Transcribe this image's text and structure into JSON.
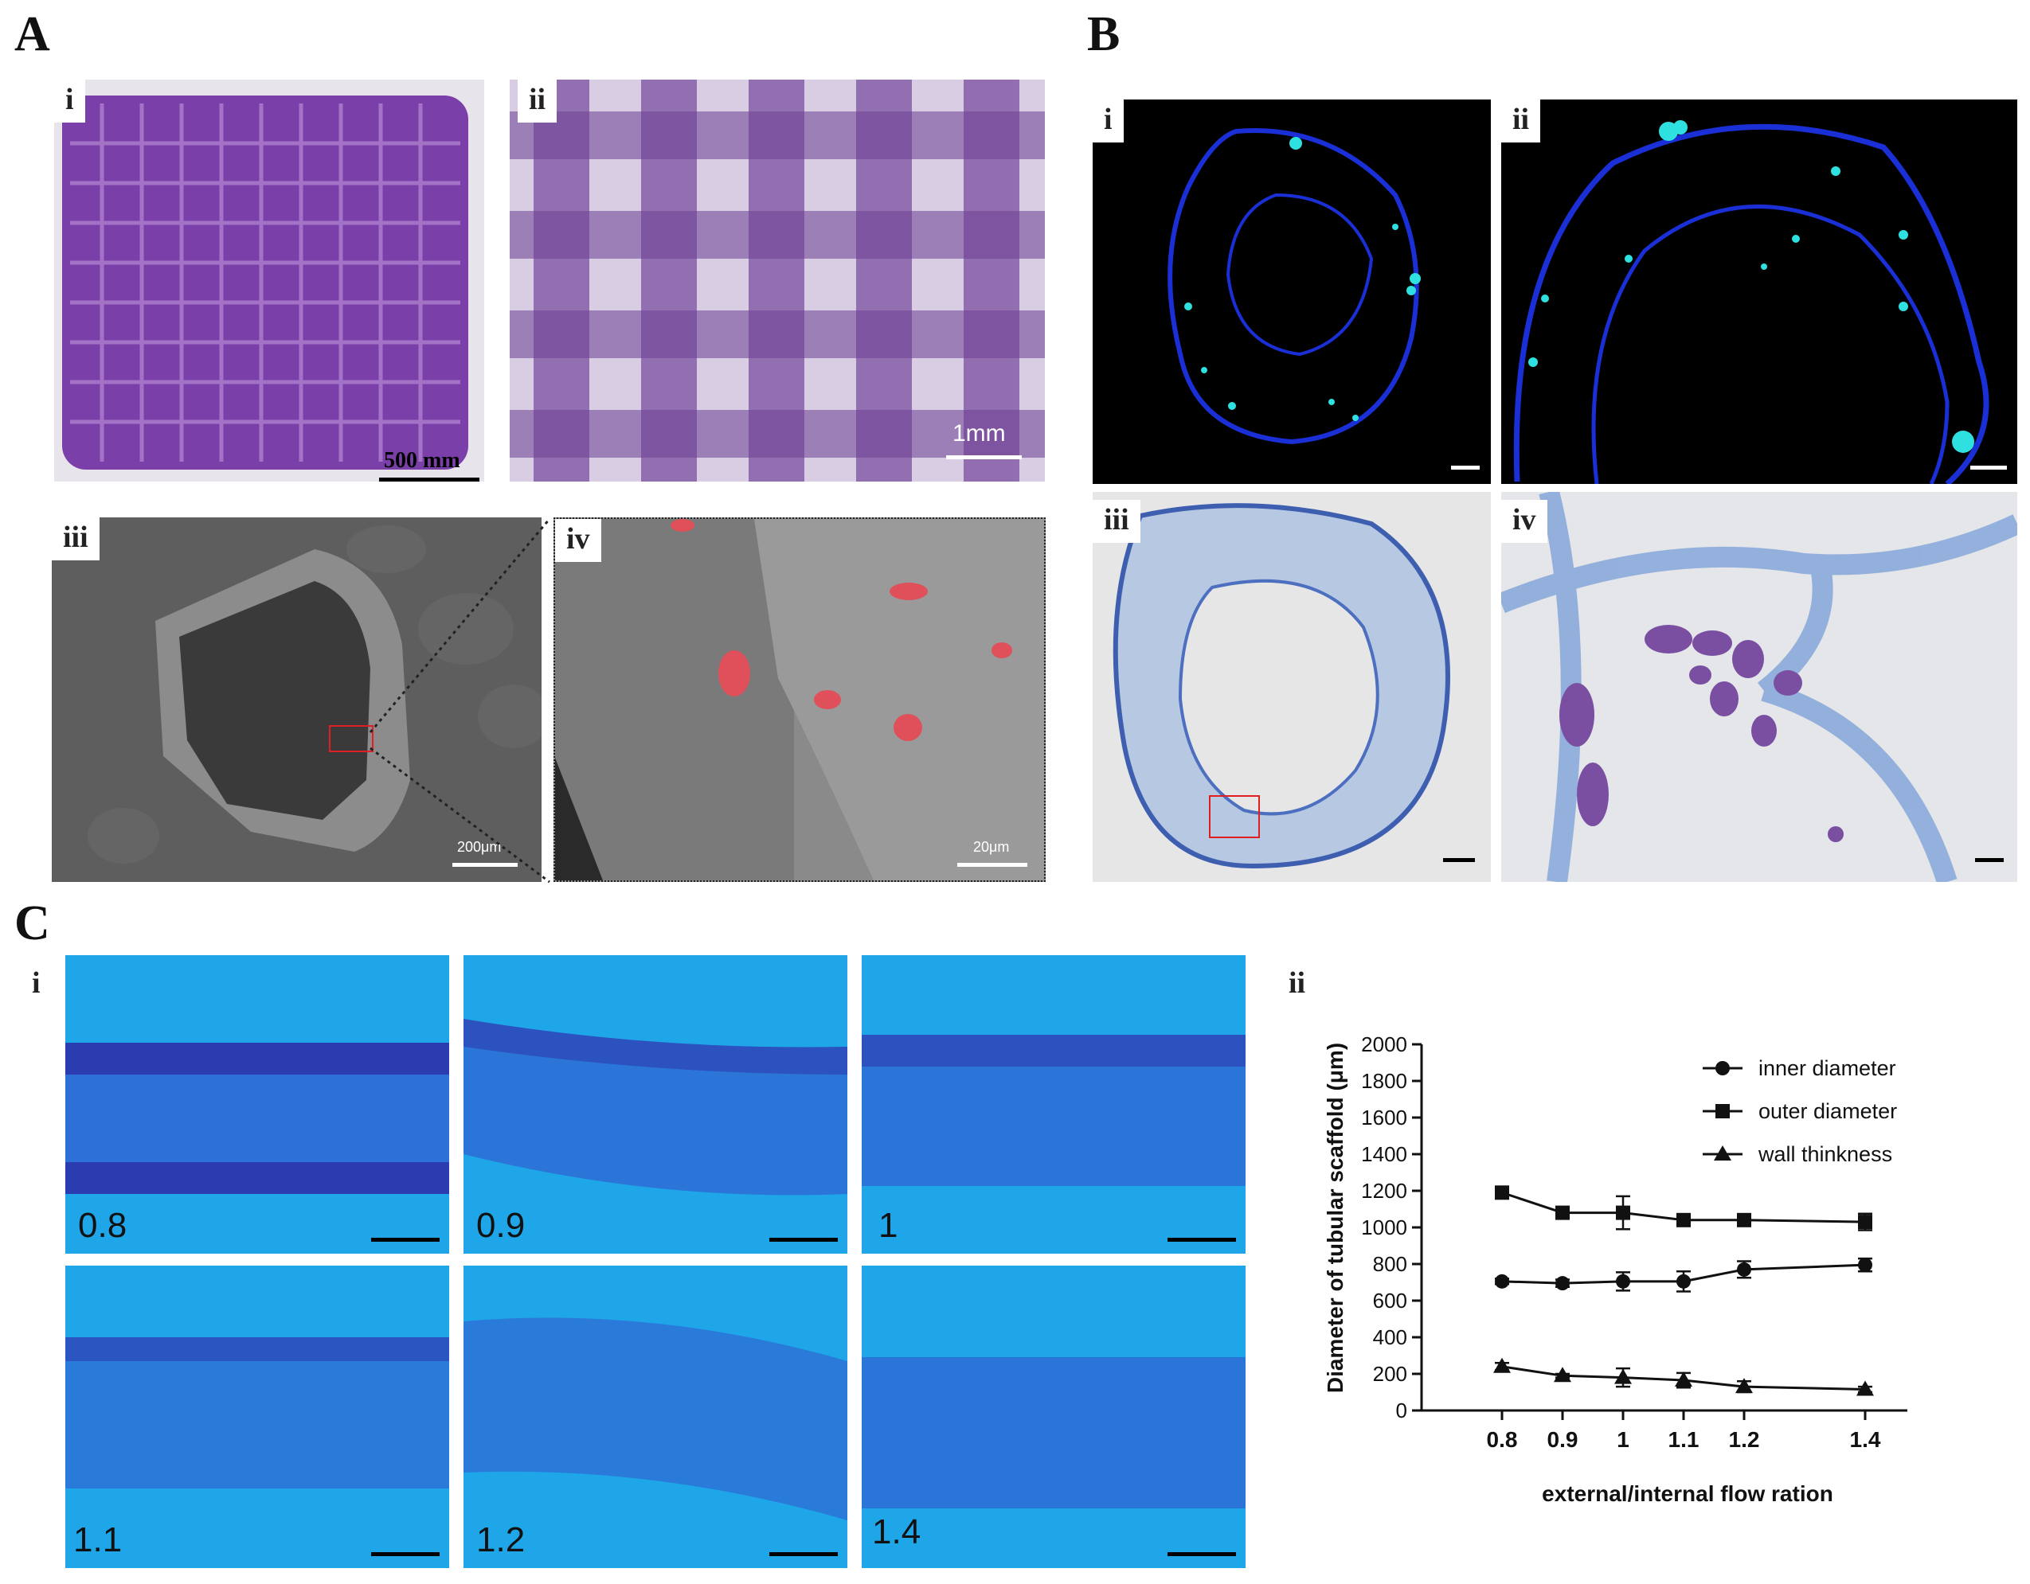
{
  "panels": {
    "A": {
      "letter": "A",
      "i": {
        "label": "i",
        "scale": "500 mm"
      },
      "ii": {
        "label": "ii",
        "scale": "1mm"
      },
      "iii": {
        "label": "iii",
        "scale": "200μm"
      },
      "iv": {
        "label": "iv",
        "scale": "20μm"
      }
    },
    "B": {
      "letter": "B",
      "i": {
        "label": "i"
      },
      "ii": {
        "label": "ii"
      },
      "iii": {
        "label": "iii"
      },
      "iv": {
        "label": "iv"
      }
    },
    "C": {
      "letter": "C",
      "i": {
        "label": "i",
        "ratios": [
          "0.8",
          "0.9",
          "1",
          "1.1",
          "1.2",
          "1.4"
        ]
      },
      "ii": {
        "label": "ii"
      }
    }
  },
  "colors": {
    "purple_gel": "#7a3fa8",
    "sem_gray": "#5e5e5e",
    "fluor_blue": "#1a2fd6",
    "fluor_cyan": "#2fe0e0",
    "stain_blue": "#5c86c9",
    "tube_bg": "#1ea6e8",
    "tube_wall": "#3a44c8",
    "red_cells": "#e0505a",
    "chart_ink": "#111111"
  },
  "chart_data": {
    "type": "line",
    "x": [
      0.8,
      0.9,
      1,
      1.1,
      1.2,
      1.4
    ],
    "x_tick_labels": [
      "0.8",
      "0.9",
      "1",
      "1.1",
      "1.2",
      "1.4"
    ],
    "xlabel": "external/internal flow ration",
    "ylabel": "Diameter of tubular scaffold (μm)",
    "ylim": [
      0,
      2000
    ],
    "y_ticks": [
      0,
      200,
      400,
      600,
      800,
      1000,
      1200,
      1400,
      1600,
      1800,
      2000
    ],
    "legend_position": "top-right",
    "grid": false,
    "series": [
      {
        "name": "inner diameter",
        "marker": "circle",
        "values": [
          705,
          695,
          705,
          705,
          770,
          795
        ],
        "errors": [
          15,
          20,
          50,
          55,
          45,
          35
        ]
      },
      {
        "name": "outer diameter",
        "marker": "square",
        "values": [
          1190,
          1080,
          1080,
          1040,
          1040,
          1030
        ],
        "errors": [
          15,
          15,
          90,
          25,
          15,
          45
        ]
      },
      {
        "name": "wall thinkness",
        "marker": "triangle",
        "values": [
          240,
          190,
          180,
          165,
          130,
          115
        ],
        "errors": [
          20,
          10,
          50,
          40,
          30,
          15
        ]
      }
    ]
  }
}
